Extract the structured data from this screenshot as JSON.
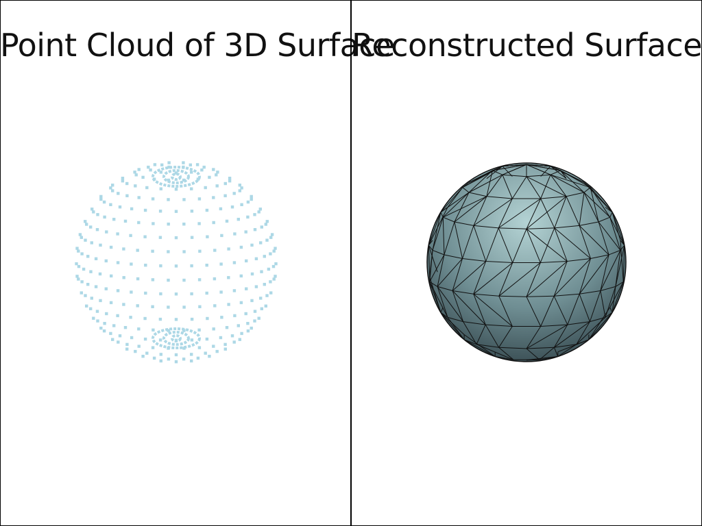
{
  "panels": {
    "left": {
      "title": "Point Cloud of 3D Surface"
    },
    "right": {
      "title": "Reconstructed Surface"
    }
  },
  "colors": {
    "point_color": "#add8e6",
    "mesh_light": "#a6c7c9",
    "mesh_dark": "#2f4147",
    "edge_color": "#111111",
    "border_color": "#000000"
  }
}
